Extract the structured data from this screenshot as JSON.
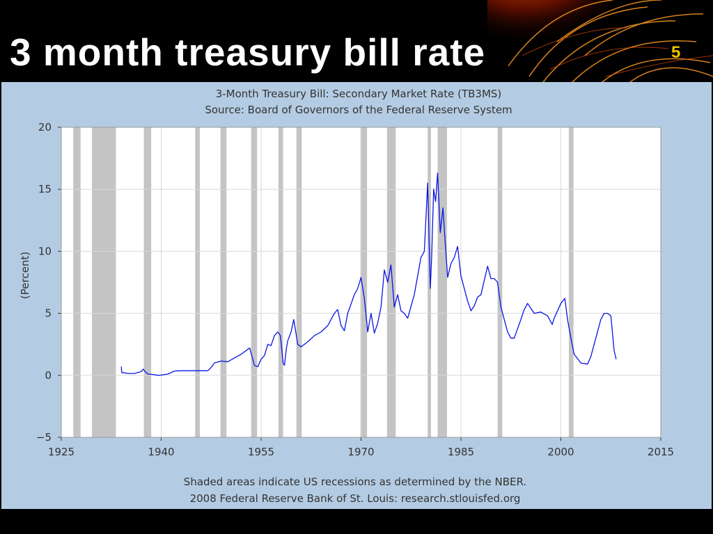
{
  "slide": {
    "title": "3 month treasury bill rate",
    "number": "5"
  },
  "colors": {
    "background": "#000000",
    "panel": "#b4cce3",
    "plot_area": "#ffffff",
    "recession": "#c4c4c4",
    "series": "#0a14e6",
    "slide_number": "#f2c200"
  },
  "chart_data": {
    "type": "line",
    "title": "3-Month Treasury Bill: Secondary Market Rate (TB3MS)",
    "subtitle": "Source: Board of Governors of the Federal Reserve System",
    "ylabel": "(Percent)",
    "xlabel": "",
    "xlim": [
      1925,
      2015
    ],
    "ylim": [
      -5,
      20
    ],
    "x_ticks": [
      "1925",
      "1940",
      "1955",
      "1970",
      "1985",
      "2000",
      "2015"
    ],
    "y_ticks": [
      "20",
      "15",
      "10",
      "5",
      "0",
      "−5"
    ],
    "grid": true,
    "footnote_1": "Shaded areas indicate US recessions as determined by the NBER.",
    "footnote_2": "2008 Federal Reserve Bank of St. Louis: research.stlouisfed.org",
    "recessions": [
      [
        1926.8,
        1927.9
      ],
      [
        1929.6,
        1933.2
      ],
      [
        1937.4,
        1938.5
      ],
      [
        1945.1,
        1945.8
      ],
      [
        1948.9,
        1949.8
      ],
      [
        1953.5,
        1954.4
      ],
      [
        1957.6,
        1958.3
      ],
      [
        1960.3,
        1961.1
      ],
      [
        1969.9,
        1970.9
      ],
      [
        1973.9,
        1975.2
      ],
      [
        1980.0,
        1980.5
      ],
      [
        1981.5,
        1982.9
      ],
      [
        1990.5,
        1991.2
      ],
      [
        2001.2,
        2001.9
      ]
    ],
    "series": [
      {
        "values": [
          [
            1934.0,
            0.7
          ],
          [
            1934.1,
            0.2
          ],
          [
            1934.5,
            0.2
          ],
          [
            1935,
            0.15
          ],
          [
            1936,
            0.15
          ],
          [
            1937,
            0.3
          ],
          [
            1937.3,
            0.5
          ],
          [
            1937.6,
            0.3
          ],
          [
            1938,
            0.1
          ],
          [
            1939,
            0.05
          ],
          [
            1939.5,
            0.0
          ],
          [
            1940,
            0.02
          ],
          [
            1941,
            0.1
          ],
          [
            1942,
            0.35
          ],
          [
            1943,
            0.37
          ],
          [
            1947,
            0.37
          ],
          [
            1947.6,
            0.7
          ],
          [
            1948,
            1.0
          ],
          [
            1949,
            1.15
          ],
          [
            1950,
            1.1
          ],
          [
            1951,
            1.4
          ],
          [
            1952,
            1.7
          ],
          [
            1953,
            2.1
          ],
          [
            1953.3,
            2.2
          ],
          [
            1954,
            0.8
          ],
          [
            1954.5,
            0.7
          ],
          [
            1955,
            1.3
          ],
          [
            1955.5,
            1.6
          ],
          [
            1956,
            2.5
          ],
          [
            1956.5,
            2.4
          ],
          [
            1957,
            3.2
          ],
          [
            1957.5,
            3.5
          ],
          [
            1957.9,
            3.2
          ],
          [
            1958.3,
            1.0
          ],
          [
            1958.5,
            0.8
          ],
          [
            1958.8,
            2.2
          ],
          [
            1959,
            2.8
          ],
          [
            1959.5,
            3.5
          ],
          [
            1959.9,
            4.5
          ],
          [
            1960.5,
            2.5
          ],
          [
            1961,
            2.3
          ],
          [
            1962,
            2.7
          ],
          [
            1963,
            3.2
          ],
          [
            1964,
            3.5
          ],
          [
            1965,
            4.0
          ],
          [
            1966,
            5.0
          ],
          [
            1966.5,
            5.3
          ],
          [
            1967,
            4.0
          ],
          [
            1967.5,
            3.6
          ],
          [
            1968,
            5.0
          ],
          [
            1969,
            6.5
          ],
          [
            1969.5,
            7.0
          ],
          [
            1970,
            7.9
          ],
          [
            1970.5,
            6.2
          ],
          [
            1971,
            3.5
          ],
          [
            1971.5,
            5.0
          ],
          [
            1972,
            3.4
          ],
          [
            1972.5,
            4.2
          ],
          [
            1973,
            5.5
          ],
          [
            1973.5,
            8.5
          ],
          [
            1974,
            7.5
          ],
          [
            1974.5,
            8.9
          ],
          [
            1975,
            5.5
          ],
          [
            1975.5,
            6.5
          ],
          [
            1976,
            5.2
          ],
          [
            1976.5,
            5.0
          ],
          [
            1977,
            4.6
          ],
          [
            1978,
            6.5
          ],
          [
            1979,
            9.5
          ],
          [
            1979.5,
            10.0
          ],
          [
            1980,
            15.5
          ],
          [
            1980.4,
            7.0
          ],
          [
            1980.6,
            9.5
          ],
          [
            1980.9,
            15.0
          ],
          [
            1981.2,
            14.0
          ],
          [
            1981.5,
            16.3
          ],
          [
            1981.9,
            11.5
          ],
          [
            1982.3,
            13.5
          ],
          [
            1982.6,
            11.0
          ],
          [
            1983,
            7.9
          ],
          [
            1983.5,
            9.0
          ],
          [
            1984,
            9.5
          ],
          [
            1984.5,
            10.4
          ],
          [
            1985,
            8.0
          ],
          [
            1986,
            6.0
          ],
          [
            1986.5,
            5.2
          ],
          [
            1987,
            5.6
          ],
          [
            1987.5,
            6.3
          ],
          [
            1988,
            6.5
          ],
          [
            1989,
            8.8
          ],
          [
            1989.5,
            7.8
          ],
          [
            1990,
            7.8
          ],
          [
            1990.5,
            7.5
          ],
          [
            1991,
            5.5
          ],
          [
            1992,
            3.5
          ],
          [
            1992.5,
            3.0
          ],
          [
            1993,
            3.0
          ],
          [
            1994,
            4.5
          ],
          [
            1994.5,
            5.3
          ],
          [
            1995,
            5.8
          ],
          [
            1996,
            5.0
          ],
          [
            1997,
            5.1
          ],
          [
            1998,
            4.8
          ],
          [
            1998.7,
            4.1
          ],
          [
            1999,
            4.6
          ],
          [
            2000,
            5.8
          ],
          [
            2000.6,
            6.2
          ],
          [
            2001,
            4.5
          ],
          [
            2001.5,
            3.0
          ],
          [
            2002,
            1.7
          ],
          [
            2003,
            1.0
          ],
          [
            2004,
            0.9
          ],
          [
            2004.5,
            1.5
          ],
          [
            2005,
            2.5
          ],
          [
            2006,
            4.5
          ],
          [
            2006.5,
            5.0
          ],
          [
            2007,
            5.0
          ],
          [
            2007.5,
            4.8
          ],
          [
            2008,
            2.0
          ],
          [
            2008.3,
            1.3
          ]
        ]
      }
    ]
  }
}
